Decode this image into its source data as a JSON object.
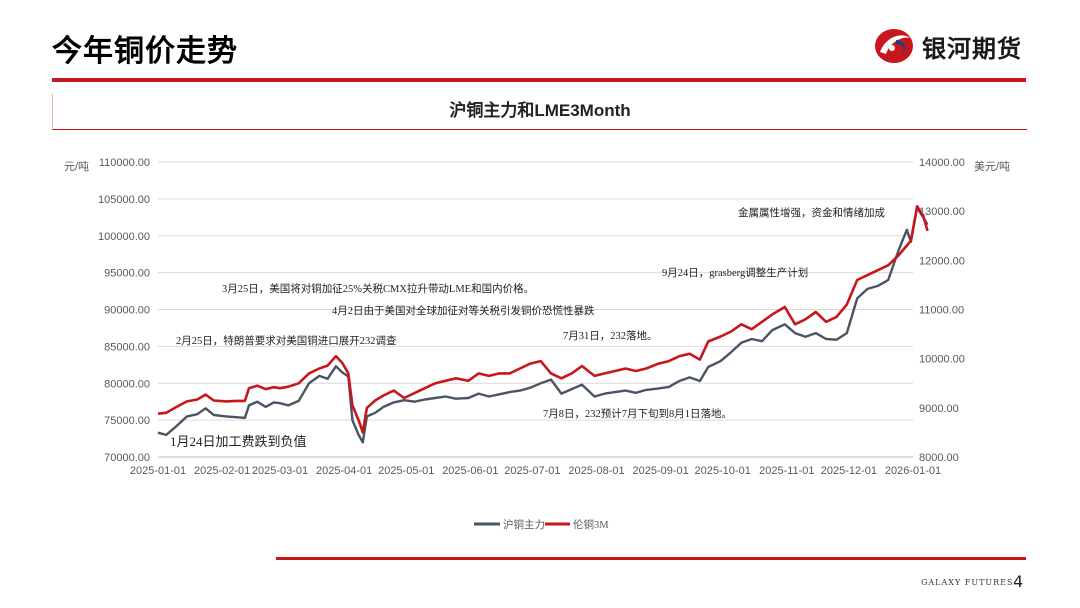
{
  "slide": {
    "title": "今年铜价走势",
    "logo_text": "银河期货",
    "footer_brand": "GALAXY FUTURES",
    "page_number": "4"
  },
  "colors": {
    "accent_red": "#c8161d",
    "shfe_line": "#4a5563",
    "lme_line": "#c8161d",
    "grid": "#d9d9d9"
  },
  "chart_data": {
    "type": "line",
    "title": "沪铜主力和LME3Month",
    "ylabel_left": "元/吨",
    "ylabel_right": "美元/吨",
    "y_left_lim": [
      70000,
      110000
    ],
    "y_left_ticks": [
      "110000.00",
      "105000.00",
      "100000.00",
      "95000.00",
      "90000.00",
      "85000.00",
      "80000.00",
      "75000.00",
      "70000.00"
    ],
    "y_right_lim": [
      8000,
      14000
    ],
    "y_right_ticks": [
      "14000.00",
      "13000.00",
      "12000.00",
      "11000.00",
      "10000.00",
      "9000.00",
      "8000.00"
    ],
    "x_ticks": [
      "2025-01-01",
      "2025-02-01",
      "2025-03-01",
      "2025-04-01",
      "2025-05-01",
      "2025-06-01",
      "2025-07-01",
      "2025-08-01",
      "2025-09-01",
      "2025-10-01",
      "2025-11-01",
      "2025-12-01",
      "2026-01-01"
    ],
    "grid": "horizontal",
    "legend_position": "bottom",
    "series": [
      {
        "name": "沪铜主力",
        "axis": "left",
        "points": [
          [
            "2025-01-01",
            73300
          ],
          [
            "2025-01-05",
            73000
          ],
          [
            "2025-01-10",
            74200
          ],
          [
            "2025-01-15",
            75500
          ],
          [
            "2025-01-20",
            75800
          ],
          [
            "2025-01-24",
            76600
          ],
          [
            "2025-01-28",
            75700
          ],
          [
            "2025-02-03",
            75500
          ],
          [
            "2025-02-08",
            75400
          ],
          [
            "2025-02-12",
            75300
          ],
          [
            "2025-02-14",
            77000
          ],
          [
            "2025-02-18",
            77500
          ],
          [
            "2025-02-22",
            76800
          ],
          [
            "2025-02-26",
            77400
          ],
          [
            "2025-03-01",
            77300
          ],
          [
            "2025-03-05",
            77000
          ],
          [
            "2025-03-10",
            77600
          ],
          [
            "2025-03-15",
            80000
          ],
          [
            "2025-03-20",
            81000
          ],
          [
            "2025-03-24",
            80600
          ],
          [
            "2025-03-28",
            82300
          ],
          [
            "2025-03-31",
            81500
          ],
          [
            "2025-04-03",
            80900
          ],
          [
            "2025-04-05",
            75000
          ],
          [
            "2025-04-08",
            73000
          ],
          [
            "2025-04-10",
            72000
          ],
          [
            "2025-04-12",
            75500
          ],
          [
            "2025-04-16",
            76000
          ],
          [
            "2025-04-20",
            76800
          ],
          [
            "2025-04-25",
            77400
          ],
          [
            "2025-04-30",
            77700
          ],
          [
            "2025-05-05",
            77500
          ],
          [
            "2025-05-10",
            77800
          ],
          [
            "2025-05-15",
            78000
          ],
          [
            "2025-05-20",
            78200
          ],
          [
            "2025-05-25",
            77900
          ],
          [
            "2025-05-31",
            78000
          ],
          [
            "2025-06-05",
            78600
          ],
          [
            "2025-06-10",
            78200
          ],
          [
            "2025-06-15",
            78500
          ],
          [
            "2025-06-20",
            78800
          ],
          [
            "2025-06-25",
            79000
          ],
          [
            "2025-06-30",
            79400
          ],
          [
            "2025-07-05",
            80000
          ],
          [
            "2025-07-10",
            80500
          ],
          [
            "2025-07-15",
            78600
          ],
          [
            "2025-07-20",
            79200
          ],
          [
            "2025-07-25",
            79800
          ],
          [
            "2025-07-31",
            78200
          ],
          [
            "2025-08-05",
            78600
          ],
          [
            "2025-08-10",
            78800
          ],
          [
            "2025-08-15",
            79000
          ],
          [
            "2025-08-20",
            78700
          ],
          [
            "2025-08-25",
            79100
          ],
          [
            "2025-08-31",
            79300
          ],
          [
            "2025-09-05",
            79500
          ],
          [
            "2025-09-10",
            80300
          ],
          [
            "2025-09-15",
            80800
          ],
          [
            "2025-09-20",
            80300
          ],
          [
            "2025-09-24",
            82200
          ],
          [
            "2025-09-30",
            83000
          ],
          [
            "2025-10-05",
            84200
          ],
          [
            "2025-10-10",
            85500
          ],
          [
            "2025-10-15",
            86000
          ],
          [
            "2025-10-20",
            85700
          ],
          [
            "2025-10-25",
            87200
          ],
          [
            "2025-10-31",
            88000
          ],
          [
            "2025-11-05",
            86800
          ],
          [
            "2025-11-10",
            86300
          ],
          [
            "2025-11-15",
            86800
          ],
          [
            "2025-11-20",
            86000
          ],
          [
            "2025-11-25",
            85900
          ],
          [
            "2025-11-30",
            86800
          ],
          [
            "2025-12-05",
            91500
          ],
          [
            "2025-12-10",
            92800
          ],
          [
            "2025-12-15",
            93200
          ],
          [
            "2025-12-20",
            94000
          ],
          [
            "2025-12-25",
            98000
          ],
          [
            "2025-12-29",
            100800
          ],
          [
            "2025-12-31",
            99200
          ],
          [
            "2026-01-03",
            103800
          ],
          [
            "2026-01-06",
            102500
          ],
          [
            "2026-01-08",
            101500
          ]
        ]
      },
      {
        "name": "伦铜3M",
        "axis": "right",
        "points": [
          [
            "2025-01-01",
            8880
          ],
          [
            "2025-01-05",
            8900
          ],
          [
            "2025-01-10",
            9020
          ],
          [
            "2025-01-15",
            9130
          ],
          [
            "2025-01-20",
            9170
          ],
          [
            "2025-01-24",
            9270
          ],
          [
            "2025-01-28",
            9150
          ],
          [
            "2025-02-03",
            9130
          ],
          [
            "2025-02-08",
            9140
          ],
          [
            "2025-02-12",
            9140
          ],
          [
            "2025-02-14",
            9400
          ],
          [
            "2025-02-18",
            9450
          ],
          [
            "2025-02-22",
            9380
          ],
          [
            "2025-02-26",
            9420
          ],
          [
            "2025-03-01",
            9400
          ],
          [
            "2025-03-05",
            9430
          ],
          [
            "2025-03-10",
            9500
          ],
          [
            "2025-03-15",
            9700
          ],
          [
            "2025-03-20",
            9800
          ],
          [
            "2025-03-24",
            9860
          ],
          [
            "2025-03-28",
            10050
          ],
          [
            "2025-03-31",
            9920
          ],
          [
            "2025-04-03",
            9700
          ],
          [
            "2025-04-05",
            9050
          ],
          [
            "2025-04-08",
            8750
          ],
          [
            "2025-04-10",
            8500
          ],
          [
            "2025-04-12",
            9000
          ],
          [
            "2025-04-16",
            9150
          ],
          [
            "2025-04-20",
            9250
          ],
          [
            "2025-04-25",
            9350
          ],
          [
            "2025-04-30",
            9200
          ],
          [
            "2025-05-05",
            9300
          ],
          [
            "2025-05-10",
            9400
          ],
          [
            "2025-05-15",
            9500
          ],
          [
            "2025-05-20",
            9550
          ],
          [
            "2025-05-25",
            9600
          ],
          [
            "2025-05-31",
            9550
          ],
          [
            "2025-06-05",
            9700
          ],
          [
            "2025-06-10",
            9650
          ],
          [
            "2025-06-15",
            9700
          ],
          [
            "2025-06-20",
            9700
          ],
          [
            "2025-06-25",
            9800
          ],
          [
            "2025-06-30",
            9900
          ],
          [
            "2025-07-05",
            9950
          ],
          [
            "2025-07-10",
            9700
          ],
          [
            "2025-07-15",
            9600
          ],
          [
            "2025-07-20",
            9700
          ],
          [
            "2025-07-25",
            9850
          ],
          [
            "2025-07-31",
            9650
          ],
          [
            "2025-08-05",
            9700
          ],
          [
            "2025-08-10",
            9750
          ],
          [
            "2025-08-15",
            9800
          ],
          [
            "2025-08-20",
            9750
          ],
          [
            "2025-08-25",
            9800
          ],
          [
            "2025-08-31",
            9900
          ],
          [
            "2025-09-05",
            9950
          ],
          [
            "2025-09-10",
            10050
          ],
          [
            "2025-09-15",
            10100
          ],
          [
            "2025-09-20",
            9980
          ],
          [
            "2025-09-24",
            10350
          ],
          [
            "2025-09-30",
            10450
          ],
          [
            "2025-10-05",
            10550
          ],
          [
            "2025-10-10",
            10700
          ],
          [
            "2025-10-15",
            10600
          ],
          [
            "2025-10-20",
            10750
          ],
          [
            "2025-10-25",
            10900
          ],
          [
            "2025-10-31",
            11050
          ],
          [
            "2025-11-05",
            10700
          ],
          [
            "2025-11-10",
            10800
          ],
          [
            "2025-11-15",
            10950
          ],
          [
            "2025-11-20",
            10750
          ],
          [
            "2025-11-25",
            10850
          ],
          [
            "2025-11-30",
            11100
          ],
          [
            "2025-12-05",
            11600
          ],
          [
            "2025-12-10",
            11700
          ],
          [
            "2025-12-15",
            11800
          ],
          [
            "2025-12-20",
            11900
          ],
          [
            "2025-12-25",
            12100
          ],
          [
            "2025-12-29",
            12300
          ],
          [
            "2025-12-31",
            12400
          ],
          [
            "2026-01-03",
            13100
          ],
          [
            "2026-01-06",
            12900
          ],
          [
            "2026-01-08",
            12600
          ]
        ]
      }
    ],
    "annotations": [
      "1月24日加工费跌到负值",
      "2月25日，特朗普要求对美国铜进口展开232调查",
      "3月25日，美国将对铜加征25%关税CMX拉升带动LME和国内价格。",
      "4月2日由于美国对全球加征对等关税引发铜价恐慌性暴跌",
      "7月31日，232落地。",
      "7月8日，232预计7月下旬到8月1日落地。",
      "9月24日，grasberg调整生产计划",
      "金属属性增强，资金和情绪加成"
    ]
  }
}
